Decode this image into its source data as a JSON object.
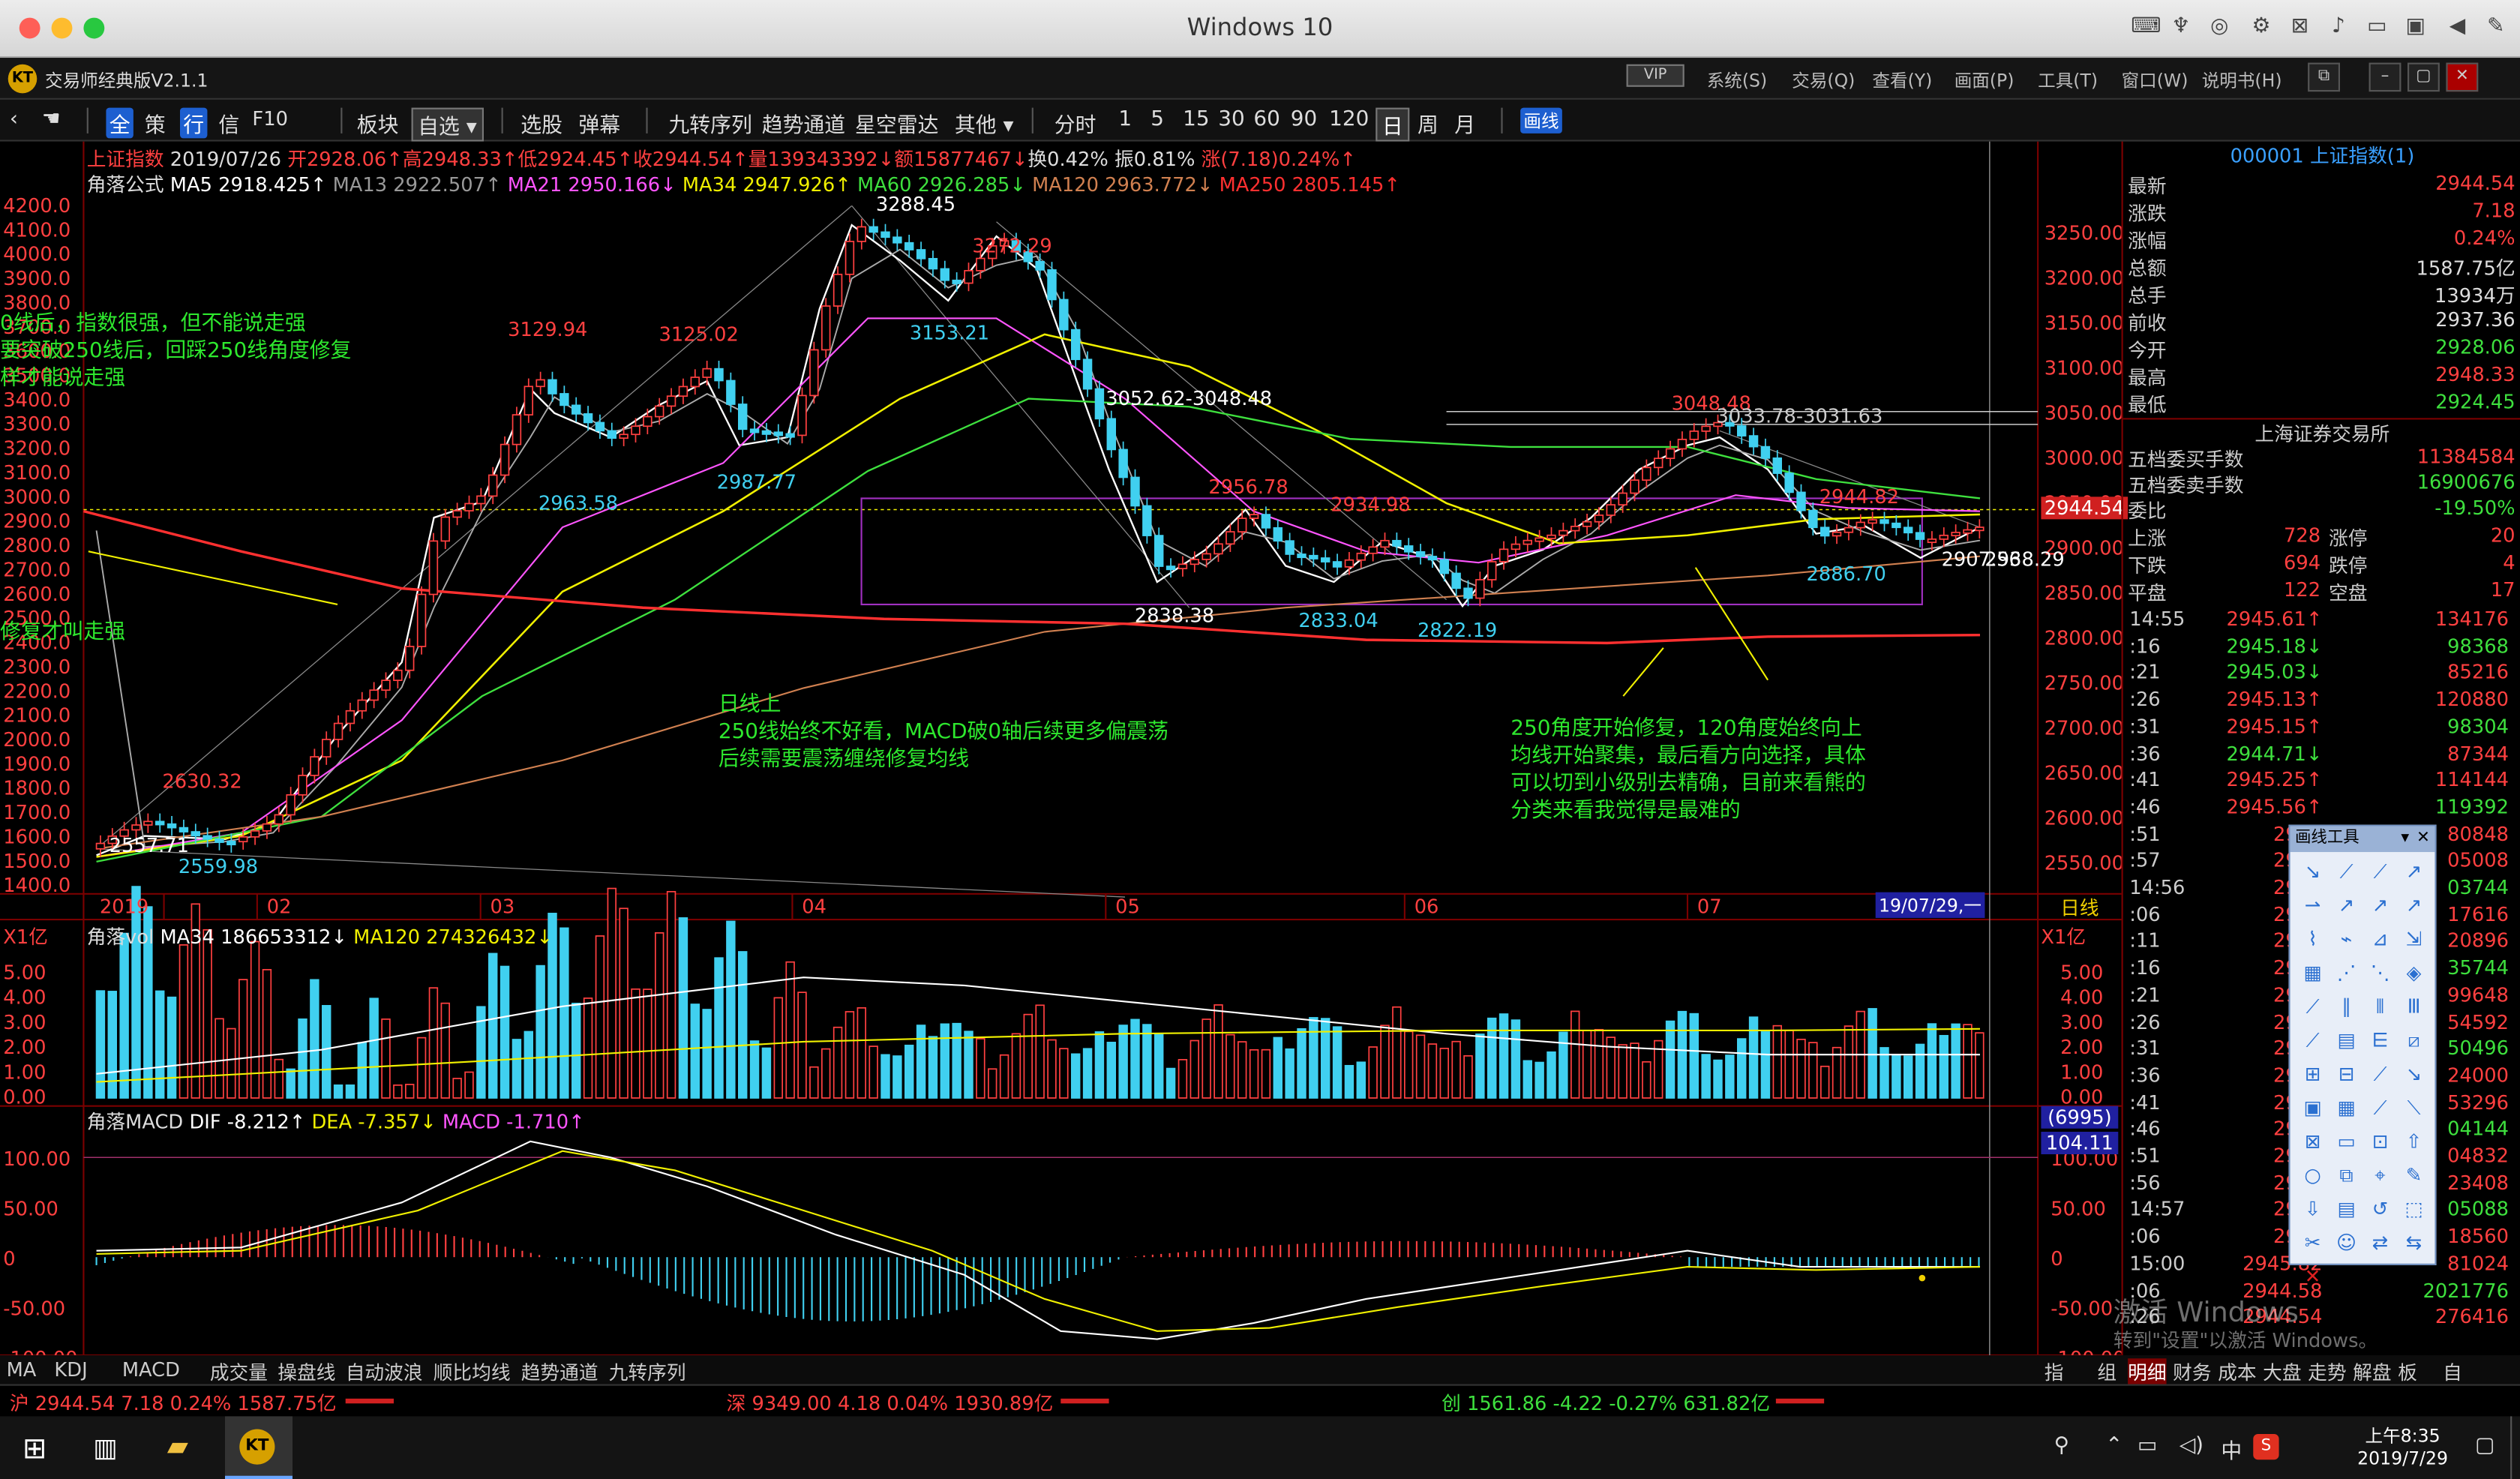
{
  "window": {
    "title": "Windows 10"
  },
  "app": {
    "title": "交易师经典版V2.1.1",
    "vip": "VIP",
    "menus": [
      "系统(S)",
      "交易(Q)",
      "查看(Y)",
      "画面(P)",
      "工具(T)",
      "窗口(W)",
      "说明书(H)"
    ]
  },
  "toolbar": {
    "items": [
      "策",
      "行",
      "信",
      "F10",
      "板块",
      "自选",
      "选股",
      "弹幕",
      "九转序列",
      "趋势通道",
      "星空雷达",
      "其他"
    ],
    "periods": [
      "分时",
      "1",
      "5",
      "15",
      "30",
      "60",
      "90",
      "120",
      "日",
      "周",
      "月"
    ],
    "draw": "画线"
  },
  "chart": {
    "info1": {
      "name": "上证指数",
      "date": "2019/07/26",
      "open": "开2928.06↑",
      "high": "高2948.33↑",
      "low": "低2924.45↑",
      "close": "收2944.54↑",
      "vol": "量139343392↓",
      "amt": "额15877467↓",
      "turn": "换0.42%",
      "amp": "振0.81%",
      "chg": "涨(7.18)0.24%↑"
    },
    "info2": {
      "f": "角落公式",
      "ma5": "MA5 2918.425↑",
      "ma13": "MA13 2922.507↑",
      "ma21": "MA21 2950.166↓",
      "ma34": "MA34 2947.926↑",
      "ma60": "MA60 2926.285↓",
      "ma120": "MA120 2963.772↓",
      "ma250": "MA250 2805.145↑"
    },
    "left_axis": [
      "4200.0",
      "4100.0",
      "4000.0",
      "3900.0",
      "3800.0",
      "3700.0",
      "3600.0",
      "3500.0",
      "3400.0",
      "3300.0",
      "3200.0",
      "3100.0",
      "3000.0",
      "2900.0",
      "2800.0",
      "2700.0",
      "2600.0",
      "2500.0",
      "2400.0",
      "2300.0",
      "2200.0",
      "2100.0",
      "2000.0",
      "1900.0",
      "1800.0",
      "1700.0",
      "1600.0",
      "1500.0",
      "1400.0"
    ],
    "right_axis": [
      "3250.00",
      "3200.00",
      "3150.00",
      "3100.00",
      "3050.00",
      "3000.00",
      "2950.00",
      "2900.00",
      "2850.00",
      "2800.00",
      "2750.00",
      "2700.00",
      "2650.00",
      "2600.00",
      "2550.00"
    ],
    "price_tag": "2944.54",
    "points": [
      "3288.45",
      "3129.94",
      "3125.02",
      "3153.21",
      "3272.29",
      "2987.77",
      "2963.58",
      "3052.62-3048.48",
      "2956.78",
      "2934.98",
      "3048.48",
      "3033.78-3031.63",
      "2944.82",
      "2886.70",
      "2907.56",
      "2938.29",
      "2838.38",
      "2833.04",
      "2822.19",
      "2630.32",
      "2557.71",
      "2559.98"
    ],
    "x_months": [
      "2019",
      "02",
      "03",
      "04",
      "05",
      "06",
      "07"
    ],
    "date_tag": "19/07/29,一",
    "period_tag": "日线",
    "notes": {
      "n1": [
        "0线后，指数很强，但不能说走强",
        "要突破250线后，回踩250线角度修复",
        "样才能说走强"
      ],
      "n2": "修复才叫走强",
      "n3": [
        "日线上",
        "250线始终不好看，MACD破0轴后续更多偏震荡",
        "后续需要震荡缠绕修复均线"
      ],
      "n4": [
        "250角度开始修复，120角度始终向上",
        "均线开始聚集，最后看方向选择，具体",
        "可以切到小级别去精确，目前来看熊的",
        "分类来看我觉得是最难的"
      ]
    },
    "vol_info": {
      "unit": "X1亿",
      "name": "角落vol",
      "ma34": "MA34 186653312↓",
      "ma120": "MA120 274326432↓"
    },
    "vol_axis": [
      "5.00",
      "4.00",
      "3.00",
      "2.00",
      "1.00",
      "0.00"
    ],
    "macd_info": {
      "name": "角落MACD",
      "dif": "DIF -8.212↑",
      "dea": "DEA -7.357↓",
      "macd": "MACD -1.710↑"
    },
    "macd_axis": [
      "100.00",
      "50.00",
      "0",
      "-50.00",
      "-100.00"
    ],
    "macd_tag1": "(6995)",
    "macd_tag2": "104.11"
  },
  "right_panel": {
    "header": "000001 上证指数(1)",
    "rows": [
      [
        "最新",
        "2944.54",
        "#ff4040"
      ],
      [
        "涨跌",
        "7.18",
        "#ff4040"
      ],
      [
        "涨幅",
        "0.24%",
        "#ff4040"
      ],
      [
        "总额",
        "1587.75亿",
        "#dddddd"
      ],
      [
        "总手",
        "13934万",
        "#dddddd"
      ],
      [
        "前收",
        "2937.36",
        "#dddddd"
      ],
      [
        "今开",
        "2928.06",
        "#3ee03e"
      ],
      [
        "最高",
        "2948.33",
        "#ff4040"
      ],
      [
        "最低",
        "2924.45",
        "#3ee03e"
      ]
    ],
    "exchange": "上海证券交易所",
    "rows2": [
      [
        "五档委买手数",
        "11384584",
        "#ff4040"
      ],
      [
        "五档委卖手数",
        "16900676",
        "#3ee03e"
      ],
      [
        "委比",
        "-19.50%",
        "#3ee03e"
      ]
    ],
    "updown": [
      [
        "上涨",
        "728",
        "涨停",
        "20"
      ],
      [
        "下跌",
        "694",
        "跌停",
        "4"
      ],
      [
        "平盘",
        "122",
        "空盘",
        "17"
      ]
    ],
    "ticks": [
      [
        "14:55",
        "2945.61↑",
        "134176"
      ],
      [
        ":16",
        "2945.18↓",
        "98368"
      ],
      [
        ":21",
        "2945.03↓",
        "85216"
      ],
      [
        ":26",
        "2945.13↑",
        "120880"
      ],
      [
        ":31",
        "2945.15↑",
        "98304"
      ],
      [
        ":36",
        "2944.71↓",
        "87344"
      ],
      [
        ":41",
        "2945.25↑",
        "114144"
      ],
      [
        ":46",
        "2945.56↑",
        "119392"
      ],
      [
        ":51",
        "2944",
        "80848"
      ],
      [
        ":57",
        "2945",
        "05008"
      ],
      [
        "14:56",
        "2945",
        "03744"
      ],
      [
        ":06",
        "2945",
        "17616"
      ],
      [
        ":11",
        "2945",
        "20896"
      ],
      [
        ":16",
        "2944",
        "35744"
      ],
      [
        ":21",
        "2945",
        "99648"
      ],
      [
        ":26",
        "2945",
        "54592"
      ],
      [
        ":31",
        "2945",
        "50496"
      ],
      [
        ":36",
        "2945",
        "24000"
      ],
      [
        ":41",
        "2945",
        "53296"
      ],
      [
        ":46",
        "2945",
        "04144"
      ],
      [
        ":51",
        "2945",
        "04832"
      ],
      [
        ":56",
        "2945",
        "23408"
      ],
      [
        "14:57",
        "2945",
        "05088"
      ],
      [
        ":06",
        "2945",
        "18560"
      ],
      [
        "15:00",
        "2945.82",
        "81024"
      ],
      [
        ":06",
        "2944.58",
        "2021776"
      ],
      [
        ":26",
        "2944.54",
        "276416"
      ]
    ],
    "watermark1": "激活 Windows",
    "watermark2": "转到\"设置\"以激活 Windows。",
    "tabs": [
      "明细",
      "财务",
      "成本",
      "大盘",
      "走势",
      "解盘",
      "板",
      "自"
    ]
  },
  "draw_tool": {
    "title": "画线工具"
  },
  "bottom_tabs": [
    "MA",
    "KDJ",
    "MACD",
    "成交量",
    "操盘线",
    "自动波浪",
    "顺比均线",
    "趋势通道",
    "九转序列"
  ],
  "bottom_right": [
    "指",
    "组"
  ],
  "status": {
    "sh": "沪 2944.54 7.18 0.24% 1587.75亿",
    "sz": "深 9349.00 4.18 0.04% 1930.89亿",
    "cy": "创 1561.86 -4.22 -0.27% 631.82亿"
  },
  "taskbar": {
    "time": "上午8:35",
    "date": "2019/7/29",
    "ime": "中"
  },
  "colors": {
    "up": "#ff4040",
    "down": "#40d0f0",
    "green": "#3ee03e",
    "yellow": "#f0f000",
    "red": "#ff3030"
  }
}
